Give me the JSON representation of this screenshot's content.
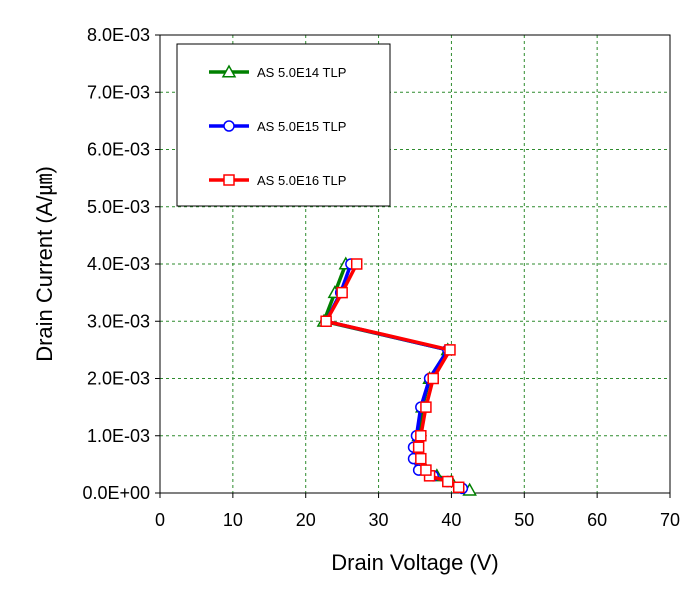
{
  "chart_data": {
    "type": "line",
    "xlabel": "Drain Voltage (V)",
    "ylabel": "Drain Current (A/㎛)",
    "xlim": [
      0,
      70
    ],
    "ylim": [
      0,
      0.008
    ],
    "x_ticks": [
      "0",
      "10",
      "20",
      "30",
      "40",
      "50",
      "60",
      "70"
    ],
    "y_ticks": [
      "0.0E+00",
      "1.0E-03",
      "2.0E-03",
      "3.0E-03",
      "4.0E-03",
      "5.0E-03",
      "6.0E-03",
      "7.0E-03",
      "8.0E-03"
    ],
    "grid": "dashed",
    "legend_position": "top-left-inside",
    "series": [
      {
        "name": "AS 5.0E14  TLP",
        "color": "#008000",
        "marker": "triangle",
        "points": [
          [
            42.5,
            5e-05
          ],
          [
            40,
            0.0002
          ],
          [
            38,
            0.0003
          ],
          [
            36.5,
            0.0004
          ],
          [
            35.5,
            0.00065
          ],
          [
            35.5,
            0.001
          ],
          [
            36,
            0.0015
          ],
          [
            37,
            0.002
          ],
          [
            39.5,
            0.0025
          ],
          [
            22.5,
            0.003
          ],
          [
            24,
            0.0035
          ],
          [
            25.5,
            0.004
          ]
        ]
      },
      {
        "name": "AS 5.0E15  TLP",
        "color": "#0000ff",
        "marker": "circle",
        "points": [
          [
            41.5,
            8e-05
          ],
          [
            39.5,
            0.0002
          ],
          [
            37.5,
            0.0003
          ],
          [
            35.5,
            0.0004
          ],
          [
            34.8,
            0.0006
          ],
          [
            34.8,
            0.0008
          ],
          [
            35.2,
            0.001
          ],
          [
            35.8,
            0.0015
          ],
          [
            37,
            0.002
          ],
          [
            39.5,
            0.0025
          ],
          [
            22.8,
            0.003
          ],
          [
            24.8,
            0.0035
          ],
          [
            26.2,
            0.004
          ]
        ]
      },
      {
        "name": "AS 5.0E16  TLP",
        "color": "#ff0000",
        "marker": "square",
        "points": [
          [
            41,
            0.0001
          ],
          [
            39.5,
            0.0002
          ],
          [
            37,
            0.0003
          ],
          [
            36.5,
            0.0004
          ],
          [
            35.8,
            0.0006
          ],
          [
            35.5,
            0.0008
          ],
          [
            35.8,
            0.001
          ],
          [
            36.5,
            0.0015
          ],
          [
            37.5,
            0.002
          ],
          [
            39.8,
            0.0025
          ],
          [
            22.8,
            0.003
          ],
          [
            25,
            0.0035
          ],
          [
            27,
            0.004
          ]
        ]
      }
    ]
  }
}
